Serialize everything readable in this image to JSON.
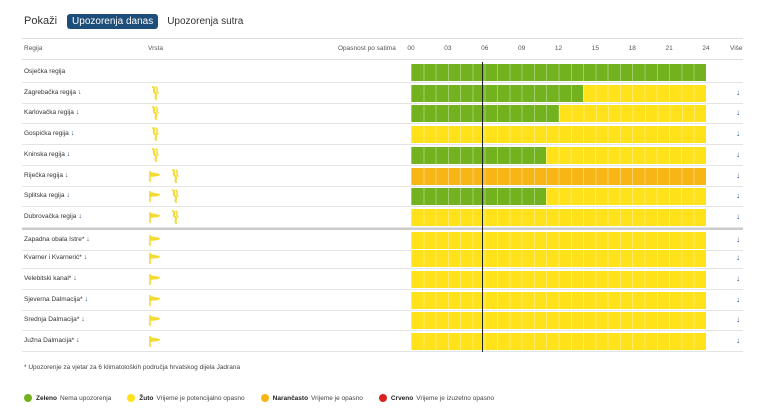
{
  "toolbar": {
    "show_label": "Pokaži",
    "tab_today": "Upozorenja danas",
    "tab_tomorrow": "Upozorenja sutra"
  },
  "header": {
    "region": "Regija",
    "type": "Vrsta",
    "danger_by_hour": "Opasnost po satima",
    "hours": [
      "00",
      "03",
      "06",
      "09",
      "12",
      "15",
      "18",
      "21",
      "24"
    ],
    "more": "Više"
  },
  "colors": {
    "green": "#72b21e",
    "yellow": "#ffe21a",
    "orange": "#f7b516",
    "red": "#d92323",
    "icon": "#f2dc32"
  },
  "rows": [
    {
      "name": "Osječka regija",
      "arrow": false,
      "icons": [],
      "segments": [
        {
          "color": "green",
          "hours": 24
        }
      ],
      "more": false
    },
    {
      "name": "Zagrebačka regija",
      "arrow": true,
      "icons": [
        "heat-icon"
      ],
      "segments": [
        {
          "color": "green",
          "hours": 14
        },
        {
          "color": "yellow",
          "hours": 10
        }
      ],
      "more": true
    },
    {
      "name": "Karlovačka regija",
      "arrow": true,
      "icons": [
        "heat-icon"
      ],
      "segments": [
        {
          "color": "green",
          "hours": 12
        },
        {
          "color": "yellow",
          "hours": 12
        }
      ],
      "more": true
    },
    {
      "name": "Gospićka regija",
      "arrow": true,
      "icons": [
        "heat-icon"
      ],
      "segments": [
        {
          "color": "yellow",
          "hours": 24
        }
      ],
      "more": true
    },
    {
      "name": "Kninska regija",
      "arrow": true,
      "icons": [
        "heat-icon"
      ],
      "segments": [
        {
          "color": "green",
          "hours": 11
        },
        {
          "color": "yellow",
          "hours": 13
        }
      ],
      "more": true
    },
    {
      "name": "Riječka regija",
      "arrow": true,
      "icons": [
        "wind-icon",
        "heat-icon"
      ],
      "segments": [
        {
          "color": "orange",
          "hours": 24
        }
      ],
      "more": true
    },
    {
      "name": "Splitska regija",
      "arrow": true,
      "icons": [
        "wind-icon",
        "heat-icon"
      ],
      "segments": [
        {
          "color": "green",
          "hours": 11
        },
        {
          "color": "yellow",
          "hours": 13
        }
      ],
      "more": true
    },
    {
      "name": "Dubrovačka regija",
      "arrow": true,
      "icons": [
        "wind-icon",
        "heat-icon"
      ],
      "segments": [
        {
          "color": "yellow",
          "hours": 24
        }
      ],
      "more": true
    },
    {
      "name": "Zapadna obala Istre*",
      "arrow": true,
      "icons": [
        "wind-icon"
      ],
      "segments": [
        {
          "color": "yellow",
          "hours": 24
        }
      ],
      "more": true,
      "sep": true
    },
    {
      "name": "Kvarner i Kvarnerić*",
      "arrow": true,
      "icons": [
        "wind-icon"
      ],
      "segments": [
        {
          "color": "yellow",
          "hours": 24
        }
      ],
      "more": true
    },
    {
      "name": "Velebitski kanal*",
      "arrow": true,
      "icons": [
        "wind-icon"
      ],
      "segments": [
        {
          "color": "yellow",
          "hours": 24
        }
      ],
      "more": true
    },
    {
      "name": "Sjeverna Dalmacija*",
      "arrow": true,
      "icons": [
        "wind-icon"
      ],
      "segments": [
        {
          "color": "yellow",
          "hours": 24
        }
      ],
      "more": true
    },
    {
      "name": "Srednja Dalmacija*",
      "arrow": true,
      "icons": [
        "wind-icon"
      ],
      "segments": [
        {
          "color": "yellow",
          "hours": 24
        }
      ],
      "more": true
    },
    {
      "name": "Južna Dalmacija*",
      "arrow": true,
      "icons": [
        "wind-icon"
      ],
      "segments": [
        {
          "color": "yellow",
          "hours": 24
        }
      ],
      "more": true
    }
  ],
  "footnote": "* Upozorenje za vjetar za 6 klimatoloških područja hrvatskog dijela Jadrana",
  "legend": [
    {
      "title": "Zeleno",
      "text": "Nema upozorenja",
      "color": "#72b21e"
    },
    {
      "title": "Žuto",
      "text": "Vrijeme je potencijalno opasno",
      "color": "#ffe21a"
    },
    {
      "title": "Narančasto",
      "text": "Vrijeme je opasno",
      "color": "#f7b516"
    },
    {
      "title": "Crveno",
      "text": "Vrijeme je izuzetno opasno",
      "color": "#d92323"
    }
  ]
}
